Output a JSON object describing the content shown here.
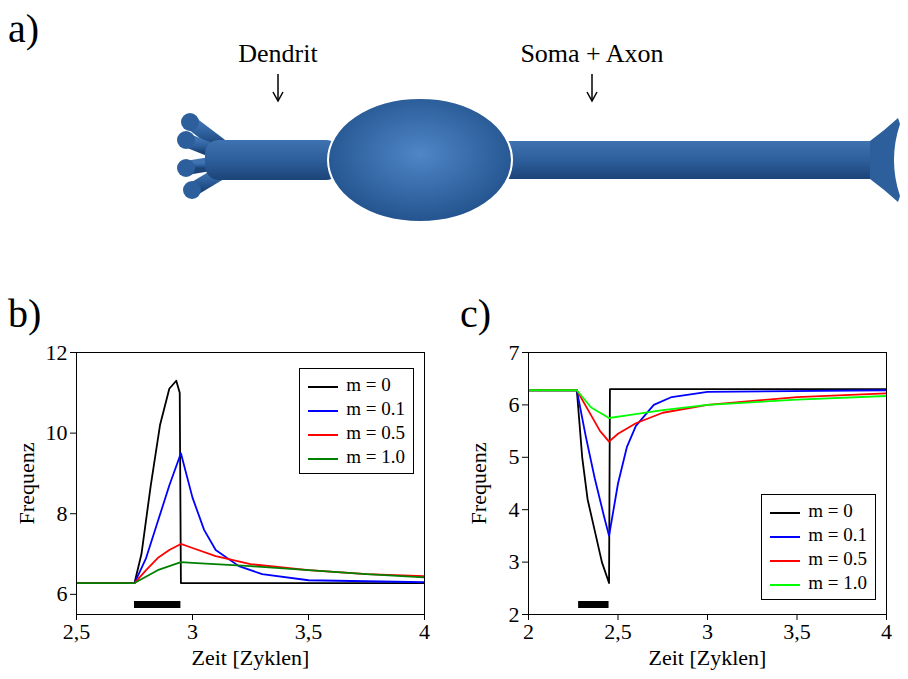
{
  "diagram": {
    "panel_label": "a)",
    "parts": [
      {
        "label": "Dendrit"
      },
      {
        "label": "Soma + Axon"
      }
    ]
  },
  "chart_data": [
    {
      "type": "line",
      "panel_label": "b)",
      "x_label": "Zeit [Zyklen]",
      "y_label": "Frequenz",
      "xlim": [
        2.5,
        4
      ],
      "xticks": [
        {
          "value": 2.5,
          "label": "2,5"
        },
        3,
        {
          "value": 3.5,
          "label": "3,5"
        },
        4
      ],
      "ylim": [
        5.5,
        12
      ],
      "yticks": [
        6,
        8,
        10,
        12
      ],
      "grid": false,
      "legend": "top-right",
      "stimulus": [
        2.75,
        2.95
      ],
      "series": [
        {
          "name": "m = 0",
          "color": "#000000",
          "x": [
            2.5,
            2.75,
            2.78,
            2.82,
            2.86,
            2.9,
            2.93,
            2.945,
            2.95,
            4
          ],
          "values": [
            6.28,
            6.28,
            7.0,
            8.7,
            10.2,
            11.1,
            11.3,
            11.0,
            6.28,
            6.28
          ]
        },
        {
          "name": "m = 0.1",
          "color": "#0000ff",
          "x": [
            2.5,
            2.75,
            2.8,
            2.85,
            2.9,
            2.95,
            3.0,
            3.05,
            3.1,
            3.2,
            3.3,
            3.5,
            4
          ],
          "values": [
            6.28,
            6.28,
            6.9,
            7.8,
            8.7,
            9.5,
            8.4,
            7.6,
            7.1,
            6.7,
            6.5,
            6.35,
            6.3
          ]
        },
        {
          "name": "m = 0.5",
          "color": "#ff0000",
          "x": [
            2.5,
            2.75,
            2.8,
            2.85,
            2.9,
            2.95,
            3.0,
            3.1,
            3.25,
            3.5,
            3.75,
            4
          ],
          "values": [
            6.28,
            6.28,
            6.6,
            6.9,
            7.1,
            7.25,
            7.15,
            6.95,
            6.75,
            6.6,
            6.5,
            6.45
          ]
        },
        {
          "name": "m = 1.0",
          "color": "#008000",
          "x": [
            2.5,
            2.75,
            2.85,
            2.95,
            3.0,
            3.25,
            3.5,
            3.75,
            4
          ],
          "values": [
            6.28,
            6.28,
            6.6,
            6.8,
            6.78,
            6.7,
            6.6,
            6.5,
            6.42
          ]
        }
      ]
    },
    {
      "type": "line",
      "panel_label": "c)",
      "x_label": "Zeit [Zyklen]",
      "y_label": "Frequenz",
      "xlim": [
        2,
        4
      ],
      "xticks": [
        2,
        {
          "value": 2.5,
          "label": "2,5"
        },
        3,
        {
          "value": 3.5,
          "label": "3,5"
        },
        4
      ],
      "ylim": [
        2,
        7
      ],
      "yticks": [
        2,
        3,
        4,
        5,
        6,
        7
      ],
      "grid": false,
      "legend": "bottom-right",
      "stimulus": [
        2.28,
        2.45
      ],
      "series": [
        {
          "name": "m = 0",
          "color": "#000000",
          "x": [
            2,
            2.27,
            2.3,
            2.33,
            2.37,
            2.41,
            2.45,
            2.455,
            4
          ],
          "values": [
            6.28,
            6.28,
            5.0,
            4.2,
            3.6,
            3.0,
            2.6,
            6.3,
            6.3
          ]
        },
        {
          "name": "m = 0.1",
          "color": "#0000ff",
          "x": [
            2,
            2.27,
            2.32,
            2.37,
            2.42,
            2.45,
            2.5,
            2.55,
            2.6,
            2.7,
            2.8,
            3.0,
            4
          ],
          "values": [
            6.28,
            6.28,
            5.4,
            4.6,
            3.9,
            3.5,
            4.5,
            5.2,
            5.6,
            6.0,
            6.15,
            6.25,
            6.28
          ]
        },
        {
          "name": "m = 0.5",
          "color": "#ff0000",
          "x": [
            2,
            2.27,
            2.35,
            2.4,
            2.45,
            2.5,
            2.6,
            2.75,
            3.0,
            3.5,
            4
          ],
          "values": [
            6.28,
            6.28,
            5.8,
            5.5,
            5.3,
            5.45,
            5.65,
            5.85,
            6.0,
            6.15,
            6.22
          ]
        },
        {
          "name": "m = 1.0",
          "color": "#00ff00",
          "x": [
            2,
            2.27,
            2.35,
            2.45,
            2.55,
            2.75,
            3.0,
            3.5,
            4
          ],
          "values": [
            6.28,
            6.28,
            5.95,
            5.75,
            5.8,
            5.9,
            6.0,
            6.1,
            6.17
          ]
        }
      ]
    }
  ]
}
